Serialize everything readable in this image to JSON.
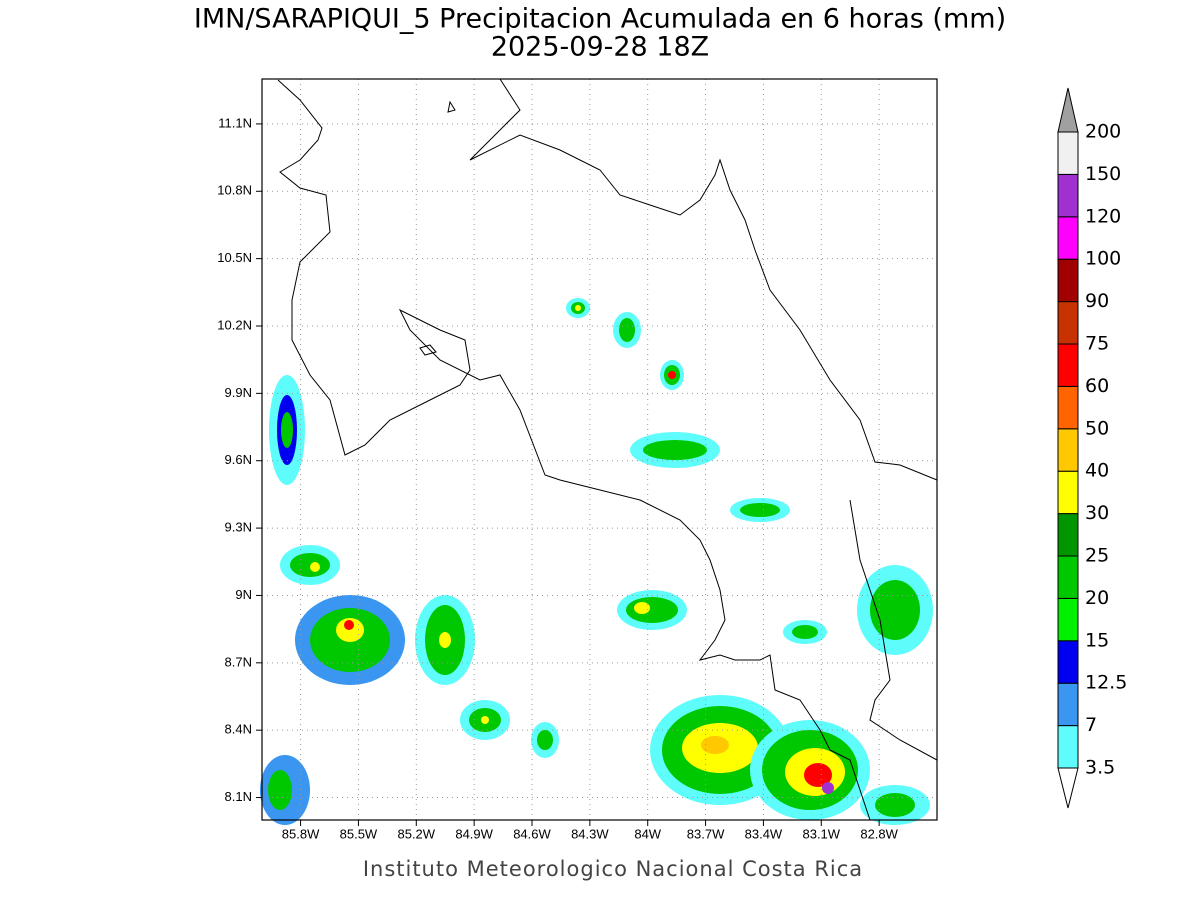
{
  "title": "IMN/SARAPIQUI_5 Precipitacion Acumulada en 6 horas (mm)",
  "subtitle": "2025-09-28 18Z",
  "footer": "Instituto Meteorologico Nacional Costa Rica",
  "map": {
    "xlim": [
      -86.0,
      -82.5
    ],
    "ylim": [
      8.0,
      11.3
    ],
    "grid": true,
    "xticks": [
      {
        "value": -85.8,
        "label": "85.8W"
      },
      {
        "value": -85.5,
        "label": "85.5W"
      },
      {
        "value": -85.2,
        "label": "85.2W"
      },
      {
        "value": -84.9,
        "label": "84.9W"
      },
      {
        "value": -84.6,
        "label": "84.6W"
      },
      {
        "value": -84.3,
        "label": "84.3W"
      },
      {
        "value": -84.0,
        "label": "84W"
      },
      {
        "value": -83.7,
        "label": "83.7W"
      },
      {
        "value": -83.4,
        "label": "83.4W"
      },
      {
        "value": -83.1,
        "label": "83.1W"
      },
      {
        "value": -82.8,
        "label": "82.8W"
      }
    ],
    "yticks": [
      {
        "value": 8.1,
        "label": "8.1N"
      },
      {
        "value": 8.4,
        "label": "8.4N"
      },
      {
        "value": 8.7,
        "label": "8.7N"
      },
      {
        "value": 9.0,
        "label": "9N"
      },
      {
        "value": 9.3,
        "label": "9.3N"
      },
      {
        "value": 9.6,
        "label": "9.6N"
      },
      {
        "value": 9.9,
        "label": "9.9N"
      },
      {
        "value": 10.2,
        "label": "10.2N"
      },
      {
        "value": 10.5,
        "label": "10.5N"
      },
      {
        "value": 10.8,
        "label": "10.8N"
      },
      {
        "value": 11.1,
        "label": "11.1N"
      }
    ]
  },
  "colorbar": {
    "levels": [
      3.5,
      7,
      12.5,
      15,
      20,
      25,
      30,
      40,
      50,
      60,
      75,
      90,
      100,
      120,
      150,
      200
    ],
    "colors": [
      "#5ffcfc",
      "#3a96f0",
      "#0000f0",
      "#00f000",
      "#00c800",
      "#009600",
      "#ffff00",
      "#ffc800",
      "#ff6400",
      "#ff0000",
      "#c83200",
      "#a00000",
      "#ff00ff",
      "#a030d0",
      "#f0f0f0"
    ],
    "under_color": "#ffffff",
    "over_color": "#a0a0a0"
  }
}
